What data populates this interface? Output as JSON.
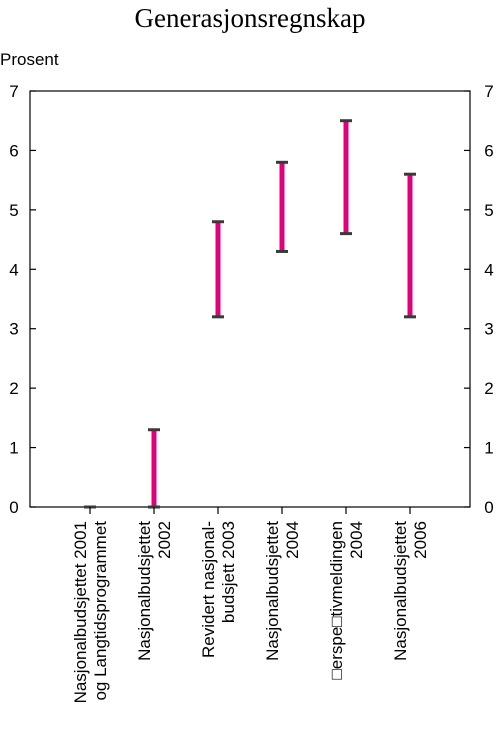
{
  "chart_data": {
    "type": "bar",
    "title": "Generasjonsregnskap",
    "ylabel": "Prosent",
    "ylim": [
      0,
      7
    ],
    "yticks": [
      0,
      1,
      2,
      3,
      4,
      5,
      6,
      7
    ],
    "grid": false,
    "bar_color": "#e2007a",
    "cap_color": "#3a3a3a",
    "categories": [
      [
        "Nasjonalbudsjettet 2001",
        "og Langtidsprogrammet"
      ],
      [
        "Nasjonalbudsjettet",
        "2002"
      ],
      [
        "Revidert nasjonal-",
        "budsjett  2003"
      ],
      [
        "Nasjonalbudsjettet",
        "2004"
      ],
      [
        "□erspe□tivmeldingen",
        "2004"
      ],
      [
        "Nasjonalbudsjettet",
        "2006"
      ]
    ],
    "ranges": [
      {
        "low": 0,
        "high": 0
      },
      {
        "low": 0,
        "high": 1.3
      },
      {
        "low": 3.2,
        "high": 4.8
      },
      {
        "low": 4.3,
        "high": 5.8
      },
      {
        "low": 4.6,
        "high": 6.5
      },
      {
        "low": 3.2,
        "high": 5.6
      }
    ]
  }
}
